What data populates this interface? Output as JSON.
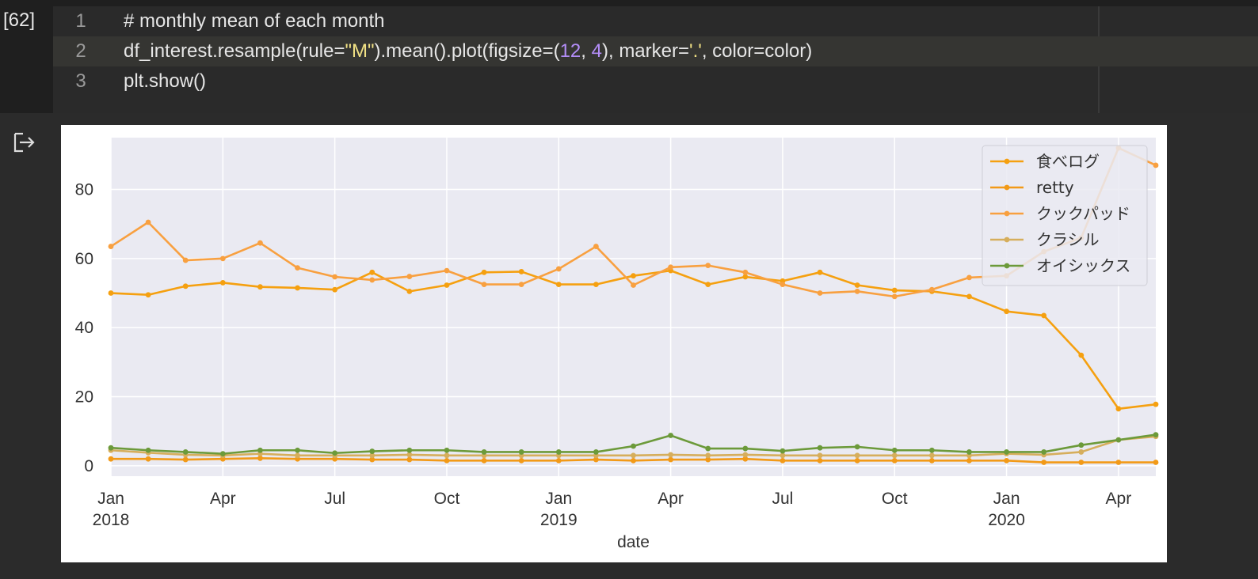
{
  "cell": {
    "execution_count": "[62]",
    "lines": [
      {
        "num": "1",
        "comment": "# monthly mean of each month"
      },
      {
        "num": "2",
        "pre": "df_interest.resample(rule=",
        "str1": "\"M\"",
        "mid1": ").mean().plot(figsize=(",
        "n1": "12",
        "sep": ", ",
        "n2": "4",
        "mid2": "), marker=",
        "str2": "'.'",
        "post": ", color=color)"
      },
      {
        "num": "3",
        "code": "plt.show()"
      }
    ]
  },
  "output": {
    "icon": "output-redirect-icon"
  },
  "chart_data": {
    "type": "line",
    "xlabel": "date",
    "ylabel": "",
    "ylim": [
      -3,
      95
    ],
    "yticks": [
      0,
      20,
      40,
      60,
      80
    ],
    "x_count": 29,
    "xticks": [
      {
        "index": 0,
        "month": "Jan",
        "year": "2018"
      },
      {
        "index": 3,
        "month": "Apr",
        "year": ""
      },
      {
        "index": 6,
        "month": "Jul",
        "year": ""
      },
      {
        "index": 9,
        "month": "Oct",
        "year": ""
      },
      {
        "index": 12,
        "month": "Jan",
        "year": "2019"
      },
      {
        "index": 15,
        "month": "Apr",
        "year": ""
      },
      {
        "index": 18,
        "month": "Jul",
        "year": ""
      },
      {
        "index": 21,
        "month": "Oct",
        "year": ""
      },
      {
        "index": 24,
        "month": "Jan",
        "year": "2020"
      },
      {
        "index": 27,
        "month": "Apr",
        "year": ""
      }
    ],
    "legend_position": "top-right",
    "grid": true,
    "series": [
      {
        "name": "食べログ",
        "color": "#f5a010",
        "values": [
          50,
          49.5,
          52,
          53,
          51.8,
          51.5,
          51,
          56,
          50.5,
          52.3,
          56,
          56.2,
          52.5,
          52.5,
          55,
          56.5,
          52.5,
          54.7,
          53.5,
          56,
          52.3,
          50.8,
          50.5,
          49,
          44.7,
          43.5,
          32,
          16.5,
          17.8
        ]
      },
      {
        "name": "retty",
        "color": "#f29a18",
        "values": [
          2,
          2,
          1.8,
          2,
          2.2,
          2,
          2,
          1.8,
          1.8,
          1.5,
          1.5,
          1.5,
          1.5,
          1.8,
          1.5,
          1.8,
          1.8,
          2,
          1.5,
          1.5,
          1.5,
          1.5,
          1.5,
          1.5,
          1.5,
          1,
          1,
          1,
          1
        ]
      },
      {
        "name": "クックパッド",
        "color": "#f8a040",
        "values": [
          63.5,
          70.5,
          59.5,
          60,
          64.5,
          57.3,
          54.7,
          53.8,
          54.8,
          56.5,
          52.5,
          52.5,
          57,
          63.5,
          52.3,
          57.5,
          58,
          56,
          52.5,
          50,
          50.5,
          49,
          51,
          54.5,
          55,
          62,
          66,
          92,
          87
        ]
      },
      {
        "name": "クラシル",
        "color": "#d6ae5c",
        "values": [
          4.5,
          3.8,
          3.2,
          3,
          3.5,
          3,
          3,
          3,
          3.2,
          3,
          3,
          3,
          3,
          3,
          3,
          3.2,
          3,
          3.2,
          3,
          3,
          3,
          3,
          3,
          3,
          3.5,
          3.2,
          4,
          7.5,
          8.5
        ]
      },
      {
        "name": "オイシックス",
        "color": "#6c9a3a",
        "values": [
          5.2,
          4.5,
          4,
          3.5,
          4.5,
          4.5,
          3.7,
          4.2,
          4.5,
          4.5,
          4,
          4,
          4,
          4,
          5.7,
          8.8,
          5,
          5,
          4.3,
          5.2,
          5.5,
          4.5,
          4.5,
          4,
          4,
          4,
          6,
          7.5,
          9
        ]
      }
    ]
  }
}
